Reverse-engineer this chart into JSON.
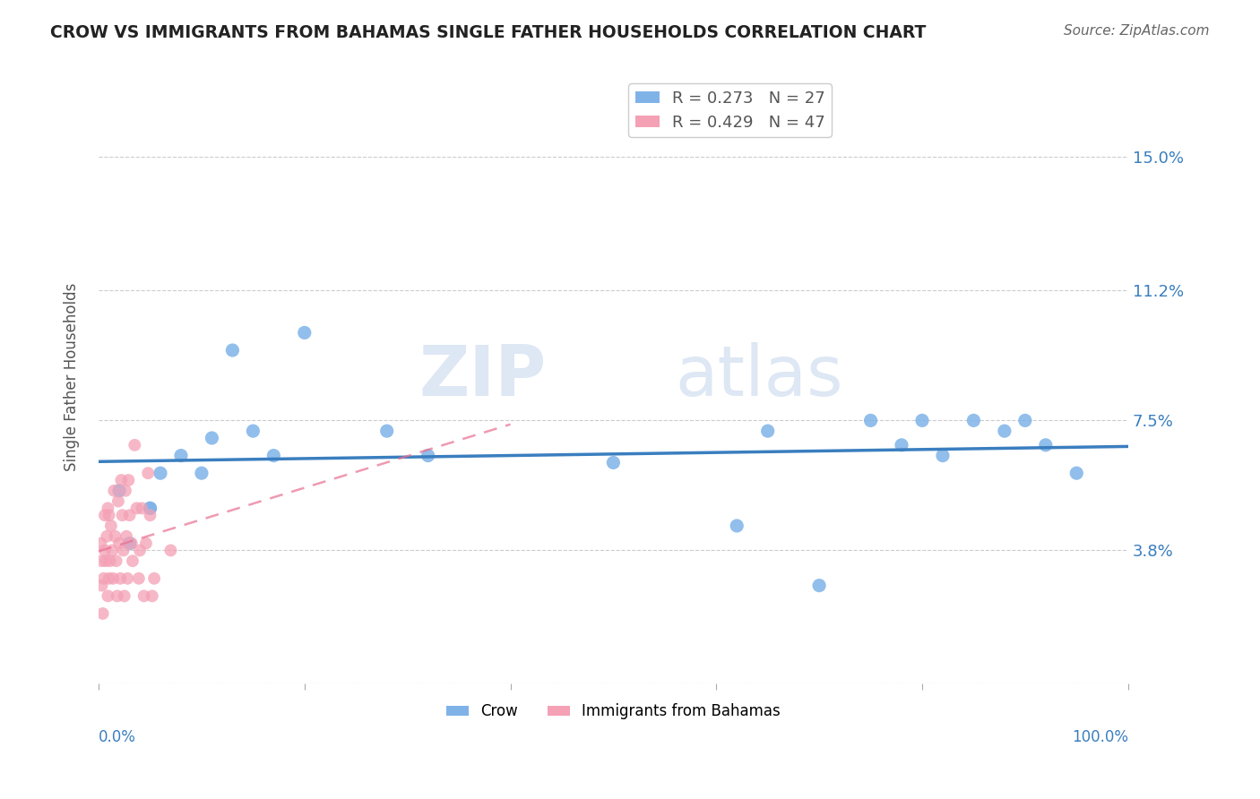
{
  "title": "CROW VS IMMIGRANTS FROM BAHAMAS SINGLE FATHER HOUSEHOLDS CORRELATION CHART",
  "source": "Source: ZipAtlas.com",
  "ylabel": "Single Father Households",
  "legend_crow": "R = 0.273   N = 27",
  "legend_bahamas": "R = 0.429   N = 47",
  "crow_color": "#7fb3e8",
  "bahamas_color": "#f4a0b5",
  "trendline_crow_color": "#3a7ebf",
  "trendline_bahamas_color": "#e87090",
  "watermark_zip": "ZIP",
  "watermark_atlas": "atlas",
  "background_color": "#ffffff",
  "crow_x": [
    0.02,
    0.03,
    0.05,
    0.05,
    0.06,
    0.08,
    0.1,
    0.11,
    0.13,
    0.15,
    0.17,
    0.2,
    0.28,
    0.32,
    0.5,
    0.62,
    0.65,
    0.7,
    0.75,
    0.78,
    0.8,
    0.82,
    0.85,
    0.88,
    0.9,
    0.92,
    0.95
  ],
  "crow_y": [
    0.055,
    0.04,
    0.05,
    0.05,
    0.06,
    0.065,
    0.06,
    0.07,
    0.095,
    0.072,
    0.065,
    0.1,
    0.072,
    0.065,
    0.063,
    0.045,
    0.072,
    0.028,
    0.075,
    0.068,
    0.075,
    0.065,
    0.075,
    0.072,
    0.075,
    0.068,
    0.06
  ],
  "bahamas_x": [
    0.002,
    0.003,
    0.003,
    0.004,
    0.005,
    0.006,
    0.006,
    0.007,
    0.008,
    0.009,
    0.009,
    0.01,
    0.01,
    0.011,
    0.012,
    0.013,
    0.014,
    0.015,
    0.016,
    0.017,
    0.018,
    0.019,
    0.02,
    0.021,
    0.022,
    0.023,
    0.024,
    0.025,
    0.026,
    0.027,
    0.028,
    0.029,
    0.03,
    0.032,
    0.033,
    0.035,
    0.037,
    0.039,
    0.04,
    0.042,
    0.044,
    0.046,
    0.048,
    0.05,
    0.052,
    0.054,
    0.07
  ],
  "bahamas_y": [
    0.04,
    0.028,
    0.035,
    0.02,
    0.03,
    0.048,
    0.038,
    0.035,
    0.042,
    0.05,
    0.025,
    0.03,
    0.048,
    0.035,
    0.045,
    0.038,
    0.03,
    0.055,
    0.042,
    0.035,
    0.025,
    0.052,
    0.04,
    0.03,
    0.058,
    0.048,
    0.038,
    0.025,
    0.055,
    0.042,
    0.03,
    0.058,
    0.048,
    0.04,
    0.035,
    0.068,
    0.05,
    0.03,
    0.038,
    0.05,
    0.025,
    0.04,
    0.06,
    0.048,
    0.025,
    0.03,
    0.038
  ],
  "xlim": [
    0.0,
    1.0
  ],
  "ylim": [
    0.0,
    0.175
  ],
  "ytick_vals": [
    0.0,
    0.038,
    0.075,
    0.112,
    0.15
  ],
  "ytick_labels": [
    "",
    "3.8%",
    "7.5%",
    "11.2%",
    "15.0%"
  ],
  "xtick_vals": [
    0.0,
    0.2,
    0.4,
    0.6,
    0.8,
    1.0
  ]
}
